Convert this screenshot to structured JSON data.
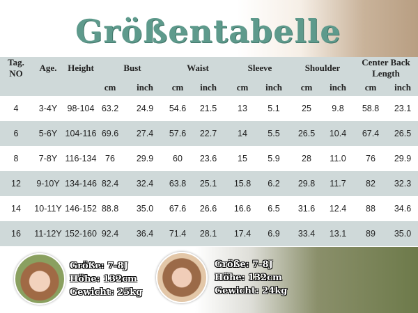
{
  "title": "Größentabelle",
  "table": {
    "headers": [
      "Tag. NO",
      "Age.",
      "Height",
      "Bust",
      "Waist",
      "Sleeve",
      "Shoulder",
      "Center Back Length"
    ],
    "units": [
      "cm",
      "inch",
      "cm",
      "inch",
      "cm",
      "inch",
      "cm",
      "inch",
      "cm",
      "inch"
    ],
    "rows": [
      [
        "4",
        "3-4Y",
        "98-104",
        "63.2",
        "24.9",
        "54.6",
        "21.5",
        "13",
        "5.1",
        "25",
        "9.8",
        "58.8",
        "23.1"
      ],
      [
        "6",
        "5-6Y",
        "104-116",
        "69.6",
        "27.4",
        "57.6",
        "22.7",
        "14",
        "5.5",
        "26.5",
        "10.4",
        "67.4",
        "26.5"
      ],
      [
        "8",
        "7-8Y",
        "116-134",
        "76",
        "29.9",
        "60",
        "23.6",
        "15",
        "5.9",
        "28",
        "11.0",
        "76",
        "29.9"
      ],
      [
        "12",
        "9-10Y",
        "134-146",
        "82.4",
        "32.4",
        "63.8",
        "25.1",
        "15.8",
        "6.2",
        "29.8",
        "11.7",
        "82",
        "32.3"
      ],
      [
        "14",
        "10-11Y",
        "146-152",
        "88.8",
        "35.0",
        "67.6",
        "26.6",
        "16.6",
        "6.5",
        "31.6",
        "12.4",
        "88",
        "34.6"
      ],
      [
        "16",
        "11-12Y",
        "152-160",
        "92.4",
        "36.4",
        "71.4",
        "28.1",
        "17.4",
        "6.9",
        "33.4",
        "13.1",
        "89",
        "35.0"
      ]
    ]
  },
  "models": [
    {
      "size": "Größe: 7-8J",
      "height": "Höhe: 132cm",
      "weight": "Gewicht: 25kg"
    },
    {
      "size": "Größe: 7-8J",
      "height": "Höhe: 132cm",
      "weight": "Gewicht: 24kg"
    }
  ],
  "colors": {
    "title": "#5e9a8c",
    "row_alt": "#cfd9d9"
  }
}
